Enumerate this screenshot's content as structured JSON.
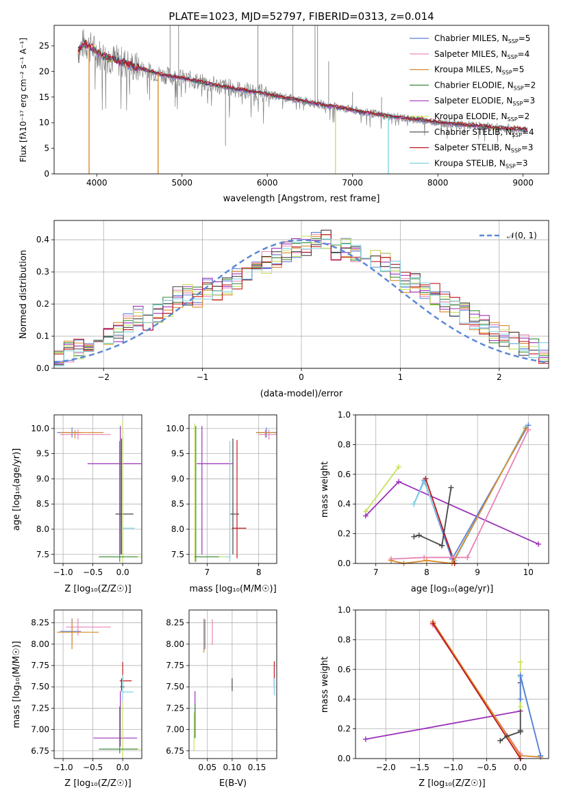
{
  "figure": {
    "title": "PLATE=1023, MJD=52797, FIBERID=0313, z=0.014"
  },
  "models": [
    {
      "name": "Chabrier MILES",
      "nssp": "5",
      "color": "#5b7fd6"
    },
    {
      "name": "Salpeter MILES",
      "nssp": "4",
      "color": "#e882b4"
    },
    {
      "name": "Kroupa MILES",
      "nssp": "5",
      "color": "#d9892c"
    },
    {
      "name": "Chabrier ELODIE",
      "nssp": "2",
      "color": "#3a8a3a"
    },
    {
      "name": "Salpeter ELODIE",
      "nssp": "3",
      "color": "#9b30b8"
    },
    {
      "name": "Kroupa ELODIE",
      "nssp": "2",
      "color": "#c6e25a"
    },
    {
      "name": "Chabrier STELIB",
      "nssp": "4",
      "color": "#444444"
    },
    {
      "name": "Salpeter STELIB",
      "nssp": "3",
      "color": "#c0181b"
    },
    {
      "name": "Kroupa STELIB",
      "nssp": "3",
      "color": "#7fd3e0"
    }
  ],
  "chart_data": [
    {
      "id": "spectrum",
      "type": "line",
      "xlabel": "wavelength [Angstrom, rest frame]",
      "ylabel": "Flux [fλ10⁻¹⁷ erg cm⁻² s⁻¹ A⁻¹]",
      "xlim": [
        3500,
        9300
      ],
      "ylim": [
        0,
        29
      ],
      "xticks": [
        "4000",
        "5000",
        "6000",
        "7000",
        "8000",
        "9000"
      ],
      "yticks": [
        "0",
        "5",
        "10",
        "15",
        "20",
        "25"
      ],
      "grid": false,
      "legend": "top-right",
      "observed_color": "#808080",
      "continuum": {
        "x": [
          3780,
          3850,
          3950,
          4050,
          4150,
          4300,
          4450,
          4600,
          4750,
          4900,
          5100,
          5300,
          5500,
          5700,
          5900,
          6100,
          6300,
          6500,
          6700,
          6900,
          7100,
          7300,
          7500,
          7700,
          7900,
          8100,
          8300,
          8500,
          8700,
          8900,
          9050
        ],
        "y": [
          24,
          25.5,
          24.5,
          23.2,
          22.6,
          21.8,
          20.8,
          20.2,
          19.4,
          19.0,
          18.4,
          17.6,
          17.0,
          16.4,
          15.9,
          15.2,
          14.6,
          14.0,
          13.3,
          12.8,
          12.1,
          11.6,
          11.1,
          10.7,
          10.3,
          9.9,
          9.6,
          9.3,
          9.0,
          8.8,
          8.7
        ]
      },
      "model_dropouts": [
        {
          "model": "Kroupa MILES",
          "x": 3910
        },
        {
          "model": "Kroupa MILES",
          "x": 4720
        },
        {
          "model": "Kroupa ELODIE",
          "x": 6800
        },
        {
          "model": "Kroupa STELIB",
          "x": 7420
        }
      ],
      "emission_spikes": [
        {
          "x": 4860,
          "y": 29
        },
        {
          "x": 4960,
          "y": 29
        },
        {
          "x": 5510,
          "y": 5.5
        },
        {
          "x": 5890,
          "y": 29
        },
        {
          "x": 6300,
          "y": 29
        },
        {
          "x": 6560,
          "y": 29
        },
        {
          "x": 6590,
          "y": 29
        },
        {
          "x": 6720,
          "y": 22
        },
        {
          "x": 7000,
          "y": 16
        },
        {
          "x": 7340,
          "y": 15
        }
      ]
    },
    {
      "id": "residual-distribution",
      "type": "step",
      "xlabel": "(data-model)/error",
      "ylabel": "Normed distribution",
      "xlim": [
        -2.5,
        2.5
      ],
      "ylim": [
        0,
        0.46
      ],
      "xticks": [
        "−2",
        "−1",
        "0",
        "1",
        "2"
      ],
      "yticks": [
        "0.0",
        "0.1",
        "0.2",
        "0.3",
        "0.4"
      ],
      "grid": true,
      "legend": "top-right",
      "reference_label": "𝒩(0, 1)",
      "reference_color": "#5b87d6",
      "bin_start": -2.5,
      "bin_width": 0.1,
      "base_values": [
        0.04,
        0.05,
        0.06,
        0.08,
        0.09,
        0.1,
        0.11,
        0.14,
        0.16,
        0.15,
        0.17,
        0.19,
        0.22,
        0.23,
        0.22,
        0.25,
        0.24,
        0.26,
        0.28,
        0.3,
        0.31,
        0.33,
        0.34,
        0.36,
        0.37,
        0.38,
        0.39,
        0.4,
        0.37,
        0.38,
        0.36,
        0.37,
        0.34,
        0.33,
        0.3,
        0.27,
        0.26,
        0.25,
        0.23,
        0.21,
        0.19,
        0.17,
        0.15,
        0.13,
        0.11,
        0.1,
        0.08,
        0.07,
        0.06,
        0.05
      ]
    },
    {
      "id": "age-vs-metallicity",
      "type": "errorbar",
      "xlabel": "Z [log₁₀(Z/Z☉)]",
      "ylabel": "age  [log₁₀(age/yr)]",
      "xlim": [
        -1.15,
        0.32
      ],
      "ylim": [
        7.32,
        10.27
      ],
      "xticks": [
        "−1.0",
        "−0.5",
        "0.0"
      ],
      "yticks": [
        "7.5",
        "8.0",
        "8.5",
        "9.0",
        "9.5",
        "10.0"
      ],
      "grid": true,
      "points": [
        {
          "model": "Chabrier MILES",
          "x": -0.85,
          "xerr": [
            0.25,
            0.15
          ],
          "y": 9.92,
          "yerr": [
            0.1,
            0.1
          ]
        },
        {
          "model": "Salpeter MILES",
          "x": -0.75,
          "xerr": [
            0.3,
            0.55
          ],
          "y": 9.88,
          "yerr": [
            0.1,
            0.1
          ]
        },
        {
          "model": "Kroupa MILES",
          "x": -0.8,
          "xerr": [
            0.25,
            0.48
          ],
          "y": 9.92,
          "yerr": [
            0.12,
            0.05
          ]
        },
        {
          "model": "Salpeter ELODIE",
          "x": -0.04,
          "xerr": [
            0.55,
            0.35
          ],
          "y": 9.3,
          "yerr": [
            1.8,
            0.75
          ]
        },
        {
          "model": "Chabrier STELIB",
          "x": -0.02,
          "xerr": [
            0.1,
            0.2
          ],
          "y": 8.3,
          "yerr": [
            0.8,
            1.5
          ]
        },
        {
          "model": "Kroupa STELIB",
          "x": 0.0,
          "xerr": [
            0.02,
            0.2
          ],
          "y": 8.02,
          "yerr": [
            0.6,
            1.8
          ]
        },
        {
          "model": "Kroupa ELODIE",
          "x": 0.0,
          "xerr": [
            0.4,
            0.35
          ],
          "y": 7.45,
          "yerr": [
            0.1,
            2.7
          ]
        },
        {
          "model": "Chabrier ELODIE",
          "x": -0.05,
          "xerr": [
            0.35,
            0.3
          ],
          "y": 7.45,
          "yerr": [
            0.1,
            2.3
          ]
        }
      ]
    },
    {
      "id": "age-vs-mass",
      "type": "errorbar",
      "xlabel": "mass [log₁₀(M/M☉)]",
      "xlim": [
        6.65,
        8.35
      ],
      "ylim": [
        7.32,
        10.27
      ],
      "xticks": [
        "7",
        "8"
      ],
      "yticks": [
        "7.5",
        "8.0",
        "8.5",
        "9.0",
        "9.5",
        "10.0"
      ],
      "grid": true,
      "points": [
        {
          "model": "Chabrier MILES",
          "x": 8.15,
          "xerr": [
            0.2,
            0.2
          ],
          "y": 9.92,
          "yerr": [
            0.1,
            0.1
          ]
        },
        {
          "model": "Salpeter MILES",
          "x": 8.2,
          "xerr": [
            0.2,
            0.15
          ],
          "y": 9.88,
          "yerr": [
            0.1,
            0.1
          ]
        },
        {
          "model": "Kroupa MILES",
          "x": 8.13,
          "xerr": [
            0.18,
            0.2
          ],
          "y": 9.92,
          "yerr": [
            0.1,
            0.05
          ]
        },
        {
          "model": "Salpeter ELODIE",
          "x": 6.9,
          "xerr": [
            0.1,
            0.6
          ],
          "y": 9.3,
          "yerr": [
            1.8,
            0.75
          ]
        },
        {
          "model": "Chabrier STELIB",
          "x": 7.5,
          "xerr": [
            0.05,
            0.12
          ],
          "y": 8.3,
          "yerr": [
            0.8,
            1.5
          ]
        },
        {
          "model": "Salpeter STELIB",
          "x": 7.58,
          "xerr": [
            0.1,
            0.18
          ],
          "y": 8.02,
          "yerr": [
            0.6,
            1.75
          ]
        },
        {
          "model": "Kroupa STELIB",
          "x": 7.44,
          "xerr": [
            0.65,
            0.02
          ],
          "y": 7.45,
          "yerr": [
            0.1,
            2.3
          ]
        },
        {
          "model": "Kroupa ELODIE",
          "x": 6.76,
          "xerr": [
            0.02,
            0.6
          ],
          "y": 7.45,
          "yerr": [
            0.1,
            2.65
          ]
        },
        {
          "model": "Chabrier ELODIE",
          "x": 6.78,
          "xerr": [
            0.02,
            0.45
          ],
          "y": 7.45,
          "yerr": [
            0.1,
            2.6
          ]
        }
      ]
    },
    {
      "id": "weight-vs-age",
      "type": "line",
      "xlabel": "age  [log₁₀(age/yr)]",
      "ylabel": "mass weight",
      "xlim": [
        6.6,
        10.4
      ],
      "ylim": [
        0,
        1
      ],
      "xticks": [
        "7",
        "8",
        "9",
        "10"
      ],
      "yticks": [
        "0.0",
        "0.2",
        "0.4",
        "0.6",
        "0.8",
        "1.0"
      ],
      "grid": true,
      "series": [
        {
          "model": "Kroupa ELODIE",
          "x": [
            6.8,
            7.45
          ],
          "y": [
            0.35,
            0.65
          ]
        },
        {
          "model": "Salpeter ELODIE",
          "x": [
            6.8,
            7.45,
            10.2
          ],
          "y": [
            0.32,
            0.55,
            0.13
          ]
        },
        {
          "model": "Chabrier MILES",
          "x": [
            7.75,
            7.95,
            8.5,
            10.0
          ],
          "y": [
            0.4,
            0.56,
            0.03,
            0.93
          ]
        },
        {
          "model": "Kroupa STELIB",
          "x": [
            7.75,
            7.95,
            8.55,
            9.95
          ],
          "y": [
            0.4,
            0.55,
            0.02,
            0.92
          ]
        },
        {
          "model": "Salpeter STELIB",
          "x": [
            7.98,
            8.55
          ],
          "y": [
            0.57,
            0.0
          ]
        },
        {
          "model": "Chabrier STELIB",
          "x": [
            7.75,
            7.85,
            8.3,
            8.48,
            8.3
          ],
          "y": [
            0.18,
            0.19,
            0.12,
            0.51,
            0.12
          ]
        },
        {
          "model": "Salpeter MILES",
          "x": [
            7.3,
            7.95,
            8.5,
            8.8,
            10.0
          ],
          "y": [
            0.03,
            0.04,
            0.04,
            0.04,
            0.9
          ]
        },
        {
          "model": "Kroupa MILES",
          "x": [
            7.3,
            7.55,
            8.0,
            8.5,
            9.95
          ],
          "y": [
            0.02,
            0.0,
            0.02,
            0.0,
            0.91
          ]
        }
      ]
    },
    {
      "id": "mass-vs-metallicity",
      "type": "errorbar",
      "xlabel": "Z [log₁₀(Z/Z☉)]",
      "ylabel": "mass [log₁₀(M/M☉)]",
      "xlim": [
        -1.15,
        0.32
      ],
      "ylim": [
        6.66,
        8.4
      ],
      "xticks": [
        "−1.0",
        "−0.5",
        "0.0"
      ],
      "yticks": [
        "6.75",
        "7.00",
        "7.25",
        "7.50",
        "7.75",
        "8.00",
        "8.25"
      ],
      "grid": true,
      "points": [
        {
          "model": "Chabrier MILES",
          "x": -0.85,
          "xerr": [
            0.2,
            0.15
          ],
          "y": 8.15,
          "yerr": [
            0.15,
            0.15
          ]
        },
        {
          "model": "Salpeter MILES",
          "x": -0.75,
          "xerr": [
            0.2,
            0.55
          ],
          "y": 8.2,
          "yerr": [
            0.1,
            0.1
          ]
        },
        {
          "model": "Kroupa MILES",
          "x": -0.85,
          "xerr": [
            0.25,
            0.45
          ],
          "y": 8.14,
          "yerr": [
            0.2,
            0.15
          ]
        },
        {
          "model": "Salpeter STELIB",
          "x": 0.0,
          "xerr": [
            0.05,
            0.15
          ],
          "y": 7.57,
          "yerr": [
            0.1,
            0.22
          ]
        },
        {
          "model": "Chabrier STELIB",
          "x": -0.02,
          "xerr": [
            0.02,
            0.05
          ],
          "y": 7.5,
          "yerr": [
            0.05,
            0.1
          ]
        },
        {
          "model": "Kroupa STELIB",
          "x": 0.0,
          "xerr": [
            0.02,
            0.18
          ],
          "y": 7.44,
          "yerr": [
            0.1,
            0.2
          ]
        },
        {
          "model": "Salpeter ELODIE",
          "x": -0.04,
          "xerr": [
            0.45,
            0.28
          ],
          "y": 6.9,
          "yerr": [
            0.1,
            0.55
          ]
        },
        {
          "model": "Kroupa ELODIE",
          "x": 0.0,
          "xerr": [
            0.02,
            0.3
          ],
          "y": 6.77,
          "yerr": [
            0.1,
            0.55
          ]
        },
        {
          "model": "Chabrier ELODIE",
          "x": -0.05,
          "xerr": [
            0.35,
            0.3
          ],
          "y": 6.77,
          "yerr": [
            0.05,
            0.5
          ]
        }
      ]
    },
    {
      "id": "mass-vs-extinction",
      "type": "errorbar",
      "xlabel": "E(B-V)",
      "xlim": [
        0.013,
        0.19
      ],
      "ylim": [
        6.66,
        8.4
      ],
      "xticks": [
        "0.05",
        "0.10",
        "0.15"
      ],
      "yticks": [
        "6.75",
        "7.00",
        "7.25",
        "7.50",
        "7.75",
        "8.00",
        "8.25"
      ],
      "grid": true,
      "points": [
        {
          "model": "Chabrier MILES",
          "x": 0.045,
          "y": 8.14,
          "yerr": [
            0.2,
            0.15
          ]
        },
        {
          "model": "Salpeter MILES",
          "x": 0.06,
          "y": 8.14,
          "yerr": [
            0.15,
            0.15
          ]
        },
        {
          "model": "Kroupa MILES",
          "x": 0.043,
          "y": 8.1,
          "yerr": [
            0.2,
            0.2
          ]
        },
        {
          "model": "Salpeter ELODIE",
          "x": 0.025,
          "y": 7.2,
          "yerr": [
            0.3,
            0.25
          ]
        },
        {
          "model": "Chabrier ELODIE",
          "x": 0.025,
          "y": 7.1,
          "yerr": [
            0.2,
            0.2
          ]
        },
        {
          "model": "Kroupa ELODIE",
          "x": 0.023,
          "y": 7.0,
          "yerr": [
            0.25,
            0.2
          ]
        },
        {
          "model": "Chabrier STELIB",
          "x": 0.1,
          "y": 7.5,
          "yerr": [
            0.05,
            0.1
          ]
        },
        {
          "model": "Salpeter STELIB",
          "x": 0.185,
          "y": 7.6,
          "yerr": [
            0.1,
            0.2
          ]
        },
        {
          "model": "Kroupa STELIB",
          "x": 0.185,
          "y": 7.5,
          "yerr": [
            0.1,
            0.1
          ]
        }
      ]
    },
    {
      "id": "weight-vs-metallicity",
      "type": "line",
      "xlabel": "Z [log₁₀(Z/Z☉)]",
      "ylabel": "mass weight",
      "xlim": [
        -2.45,
        0.42
      ],
      "ylim": [
        0,
        1
      ],
      "xticks": [
        "−2.0",
        "−1.5",
        "−1.0",
        "−0.5",
        "0.0"
      ],
      "yticks": [
        "0.0",
        "0.2",
        "0.4",
        "0.6",
        "0.8",
        "1.0"
      ],
      "grid": true,
      "series": [
        {
          "model": "Salpeter ELODIE",
          "x": [
            -2.3,
            0.0
          ],
          "y": [
            0.13,
            0.32
          ]
        },
        {
          "model": "Salpeter MILES",
          "x": [
            -1.3,
            0.0
          ],
          "y": [
            0.9,
            0.03
          ]
        },
        {
          "model": "Kroupa MILES",
          "x": [
            -1.3,
            0.0,
            0.3
          ],
          "y": [
            0.92,
            0.02,
            0.01
          ]
        },
        {
          "model": "Salpeter STELIB",
          "x": [
            -1.3,
            0.0
          ],
          "y": [
            0.91,
            0.0
          ]
        },
        {
          "model": "Chabrier STELIB",
          "x": [
            -0.3,
            -0.2,
            0.0,
            0.0,
            0.0
          ],
          "y": [
            0.12,
            0.15,
            0.18,
            0.19,
            0.51
          ]
        },
        {
          "model": "Kroupa ELODIE",
          "x": [
            0.0,
            0.0
          ],
          "y": [
            0.35,
            0.65
          ]
        },
        {
          "model": "Kroupa STELIB",
          "x": [
            0.0,
            0.0,
            0.3
          ],
          "y": [
            0.4,
            0.55,
            0.02
          ]
        },
        {
          "model": "Chabrier MILES",
          "x": [
            0.0,
            0.0,
            0.3
          ],
          "y": [
            0.4,
            0.56,
            0.02
          ]
        }
      ]
    }
  ]
}
